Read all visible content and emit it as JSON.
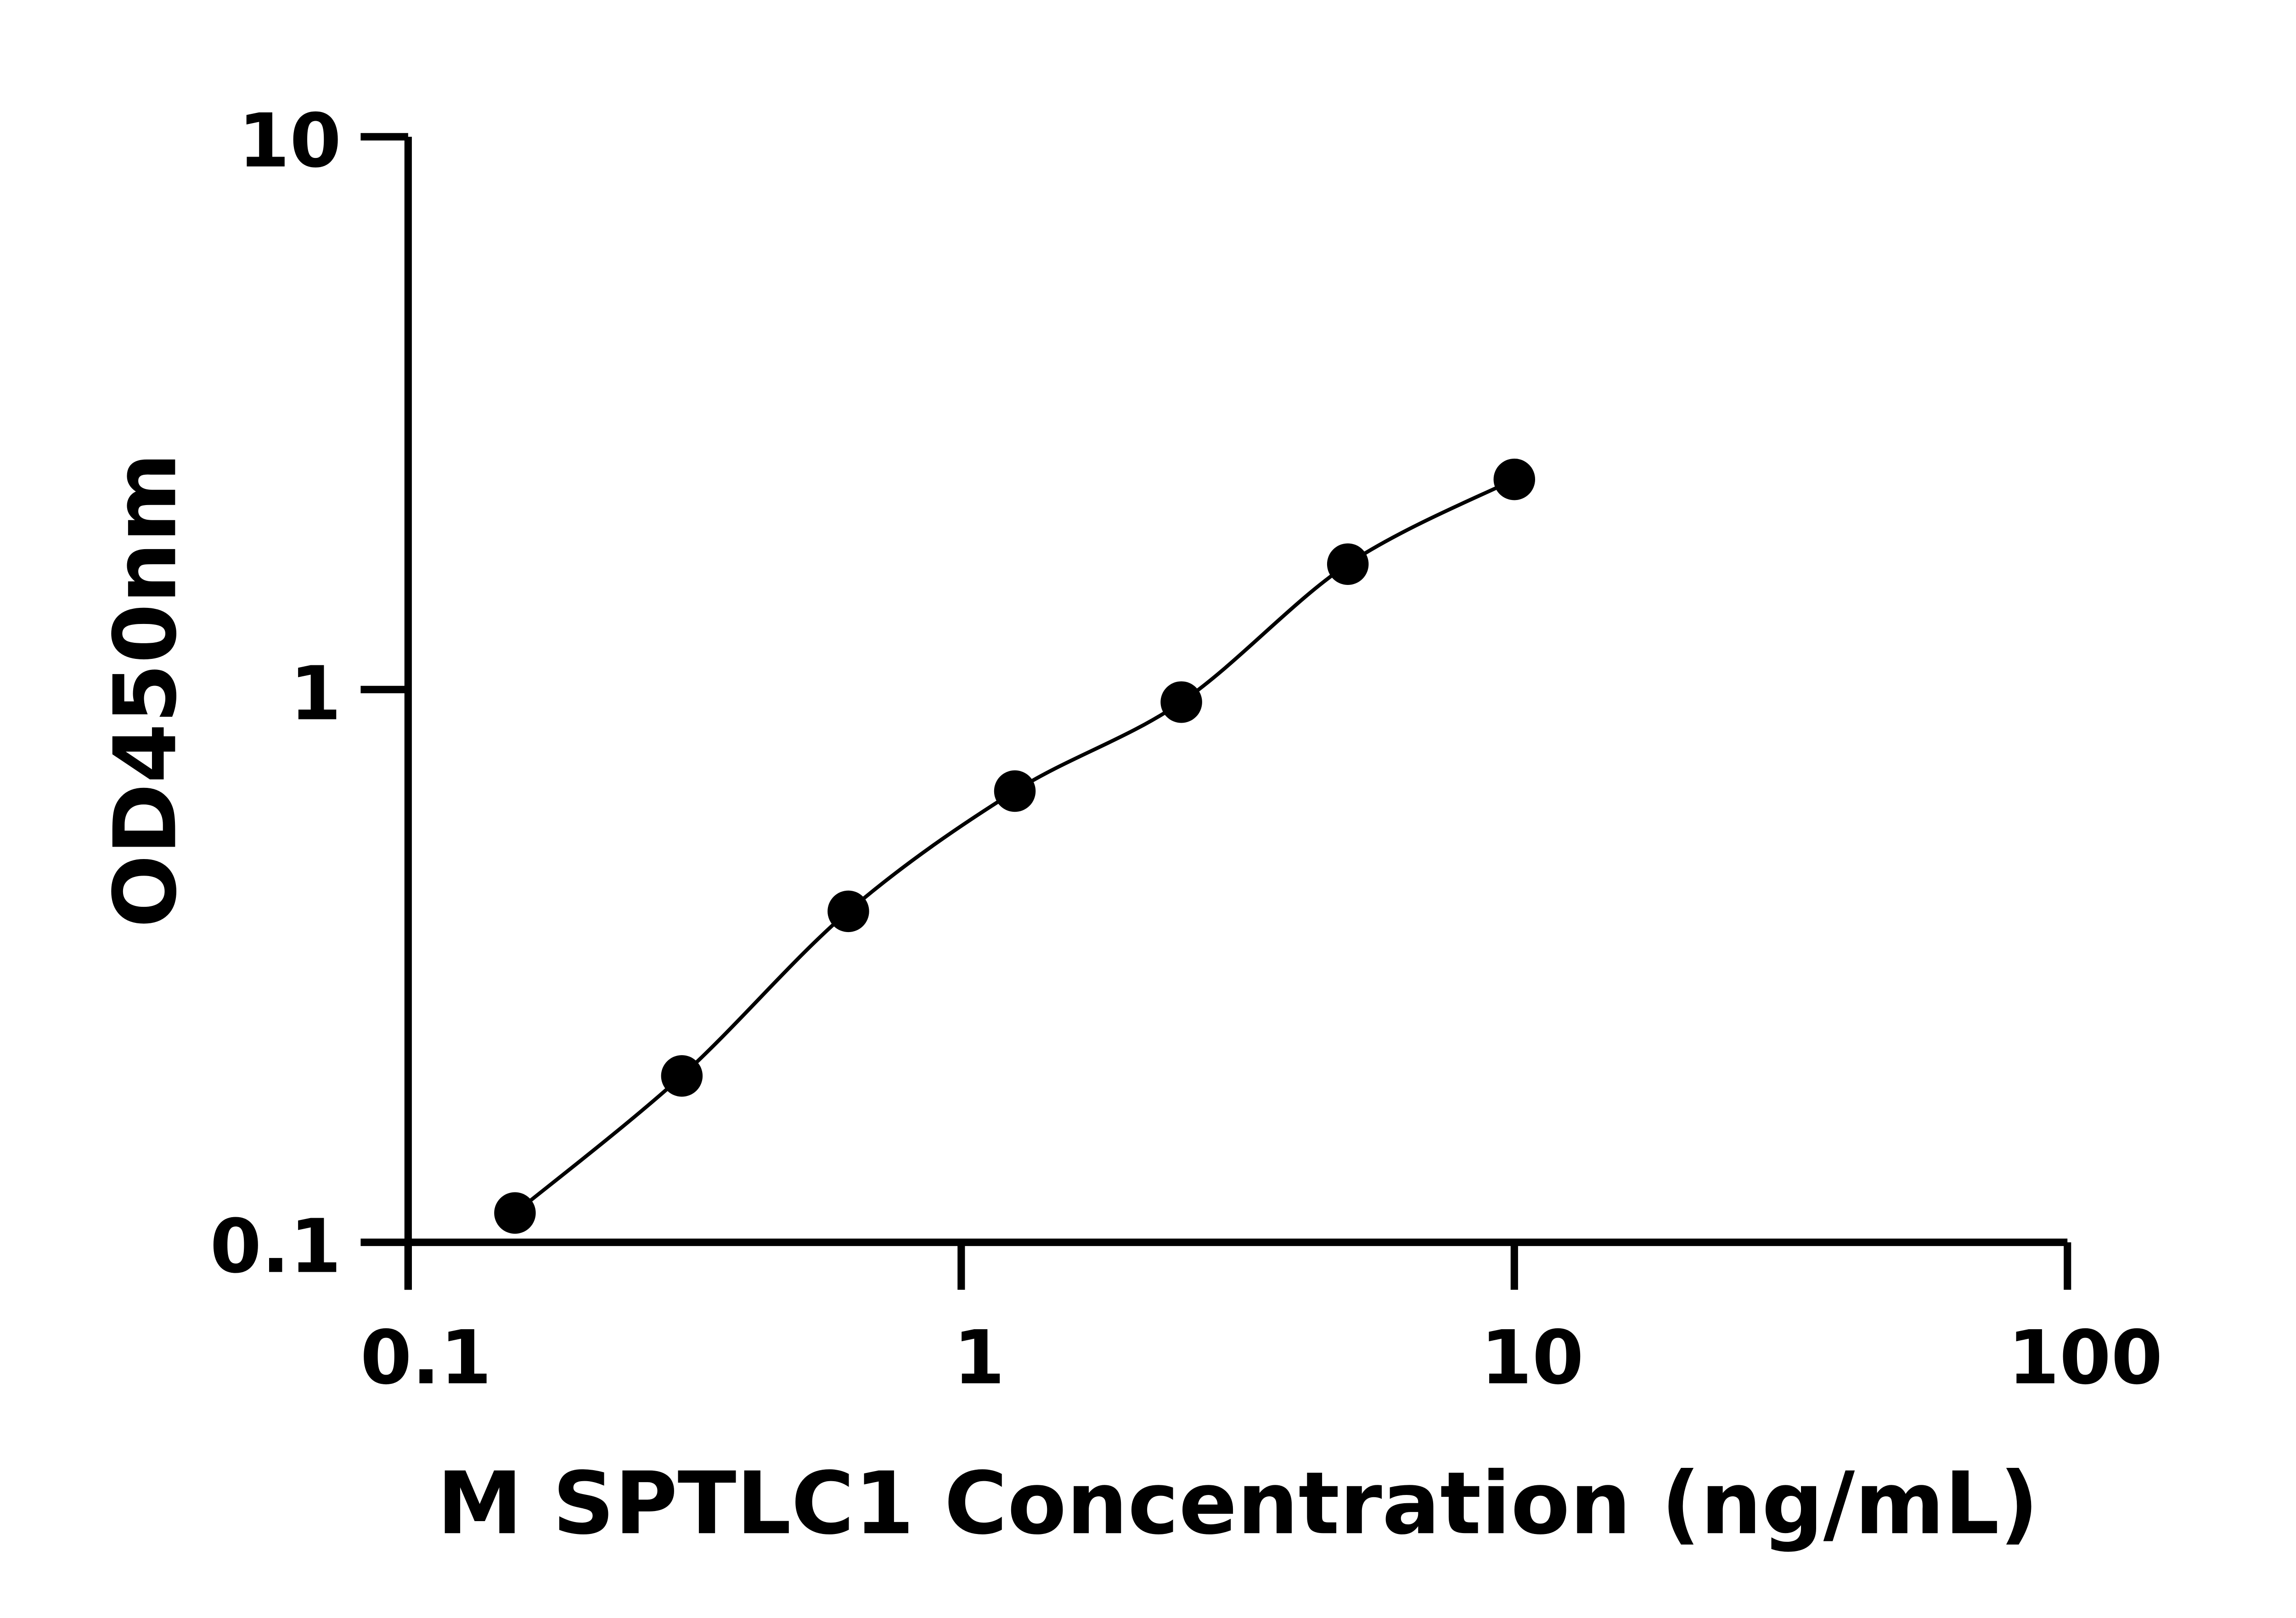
{
  "chart_data": {
    "type": "scatter",
    "title": "",
    "xlabel": "M SPTLC1 Concentration (ng/mL)",
    "ylabel": "OD450nm",
    "x_scale": "log",
    "y_scale": "log",
    "xlim": [
      0.1,
      100
    ],
    "ylim": [
      0.1,
      10
    ],
    "x_ticks": [
      "0.1",
      "1",
      "10",
      "100"
    ],
    "y_ticks": [
      "0.1",
      "1",
      "10"
    ],
    "grid": false,
    "fit_curve": true,
    "marker_color": "#000000",
    "series": [
      {
        "x": [
          0.156,
          0.3125,
          0.625,
          1.25,
          2.5,
          5,
          10
        ],
        "y": [
          0.113,
          0.2,
          0.397,
          0.655,
          0.949,
          1.686,
          2.4
        ]
      }
    ]
  }
}
